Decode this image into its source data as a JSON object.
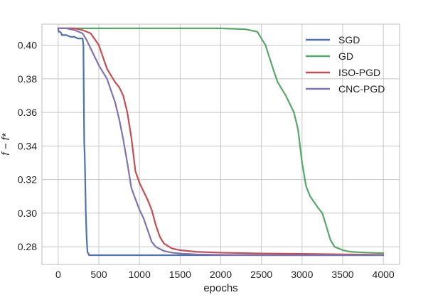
{
  "chart_data": {
    "type": "line",
    "title": "",
    "xlabel": "epochs",
    "ylabel": "f − f*",
    "xlim": [
      -200,
      4200
    ],
    "ylim": [
      0.2695,
      0.4125
    ],
    "x_ticks": [
      0,
      500,
      1000,
      1500,
      2000,
      2500,
      3000,
      3500,
      4000
    ],
    "x_tick_labels": [
      "0",
      "500",
      "1000",
      "1500",
      "2000",
      "2500",
      "3000",
      "3500",
      "4000"
    ],
    "y_ticks": [
      0.28,
      0.3,
      0.32,
      0.34,
      0.36,
      0.38,
      0.4
    ],
    "y_tick_labels": [
      "0.28",
      "0.30",
      "0.32",
      "0.34",
      "0.36",
      "0.38",
      "0.40"
    ],
    "grid": true,
    "legend_position": "top-right",
    "series": [
      {
        "name": "SGD",
        "color": "#4c72b0",
        "x": [
          0,
          5,
          20,
          40,
          45,
          100,
          150,
          200,
          240,
          300,
          310,
          315,
          320,
          325,
          330,
          340,
          350,
          360,
          370,
          380,
          400,
          600,
          1000,
          2000,
          3000,
          4000
        ],
        "y": [
          0.41,
          0.408,
          0.408,
          0.407,
          0.406,
          0.406,
          0.405,
          0.405,
          0.404,
          0.404,
          0.4,
          0.37,
          0.342,
          0.336,
          0.326,
          0.3,
          0.285,
          0.277,
          0.276,
          0.275,
          0.275,
          0.275,
          0.275,
          0.275,
          0.275,
          0.275
        ]
      },
      {
        "name": "GD",
        "color": "#55a868",
        "x": [
          0,
          500,
          1000,
          1500,
          2000,
          2300,
          2450,
          2550,
          2650,
          2700,
          2800,
          2900,
          2950,
          3000,
          3050,
          3100,
          3200,
          3250,
          3300,
          3350,
          3400,
          3500,
          3600,
          3800,
          4000
        ],
        "y": [
          0.41,
          0.41,
          0.41,
          0.41,
          0.41,
          0.4095,
          0.408,
          0.4,
          0.385,
          0.378,
          0.37,
          0.36,
          0.35,
          0.33,
          0.316,
          0.31,
          0.303,
          0.3,
          0.292,
          0.284,
          0.28,
          0.278,
          0.277,
          0.2765,
          0.2762
        ]
      },
      {
        "name": "ISO-PGD",
        "color": "#c44e52",
        "x": [
          0,
          100,
          200,
          300,
          400,
          500,
          550,
          600,
          700,
          750,
          800,
          850,
          900,
          950,
          1000,
          1100,
          1150,
          1200,
          1250,
          1300,
          1400,
          1500,
          1700,
          2000,
          2500,
          3000,
          3500,
          4000
        ],
        "y": [
          0.41,
          0.41,
          0.41,
          0.409,
          0.407,
          0.4,
          0.393,
          0.386,
          0.378,
          0.375,
          0.37,
          0.36,
          0.345,
          0.325,
          0.318,
          0.308,
          0.302,
          0.293,
          0.286,
          0.282,
          0.279,
          0.278,
          0.277,
          0.2765,
          0.276,
          0.2758,
          0.2755,
          0.2752
        ]
      },
      {
        "name": "CNC-PGD",
        "color": "#8172b2",
        "x": [
          0,
          100,
          200,
          250,
          300,
          350,
          400,
          450,
          500,
          600,
          700,
          750,
          800,
          850,
          900,
          1000,
          1050,
          1100,
          1150,
          1200,
          1300,
          1400,
          1500,
          1700,
          2000,
          2500,
          3000,
          3500,
          4000
        ],
        "y": [
          0.41,
          0.41,
          0.409,
          0.408,
          0.407,
          0.403,
          0.398,
          0.393,
          0.388,
          0.38,
          0.366,
          0.356,
          0.344,
          0.33,
          0.315,
          0.302,
          0.297,
          0.29,
          0.283,
          0.28,
          0.2775,
          0.2765,
          0.276,
          0.2755,
          0.2752,
          0.275,
          0.275,
          0.275,
          0.275
        ]
      }
    ]
  }
}
